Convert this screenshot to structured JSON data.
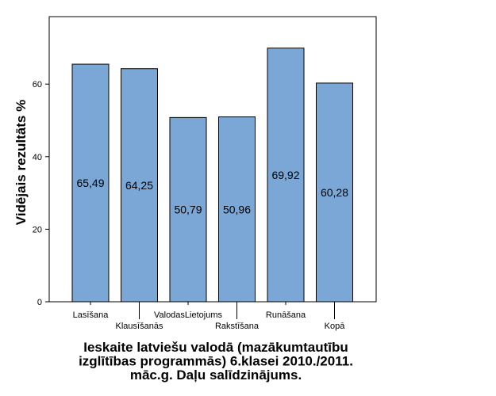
{
  "chart_data": {
    "type": "bar",
    "categories": [
      "Lasīšana",
      "Klausīšanās",
      "ValodasLietojums",
      "Rakstīšana",
      "Runāšana",
      "Kopā"
    ],
    "values": [
      65.49,
      64.25,
      50.79,
      50.96,
      69.92,
      60.28
    ],
    "value_labels": [
      "65,49",
      "64,25",
      "50,79",
      "50,96",
      "69,92",
      "60,28"
    ],
    "title_lines": [
      "Ieskaite latviešu valodā (mazākumtautību",
      "izglītības programmās) 6.klasei 2010./2011.",
      "māc.g. Daļu salīdzinājums."
    ],
    "xlabel": "",
    "ylabel": "Vidējais rezultāts %",
    "ylim": [
      0,
      78.6
    ],
    "yticks": [
      0,
      20,
      40,
      60
    ],
    "grid": false,
    "bar_color": "#7aa7d5",
    "bar_edge_color": "#000000",
    "plot_background": "#ffffff"
  }
}
